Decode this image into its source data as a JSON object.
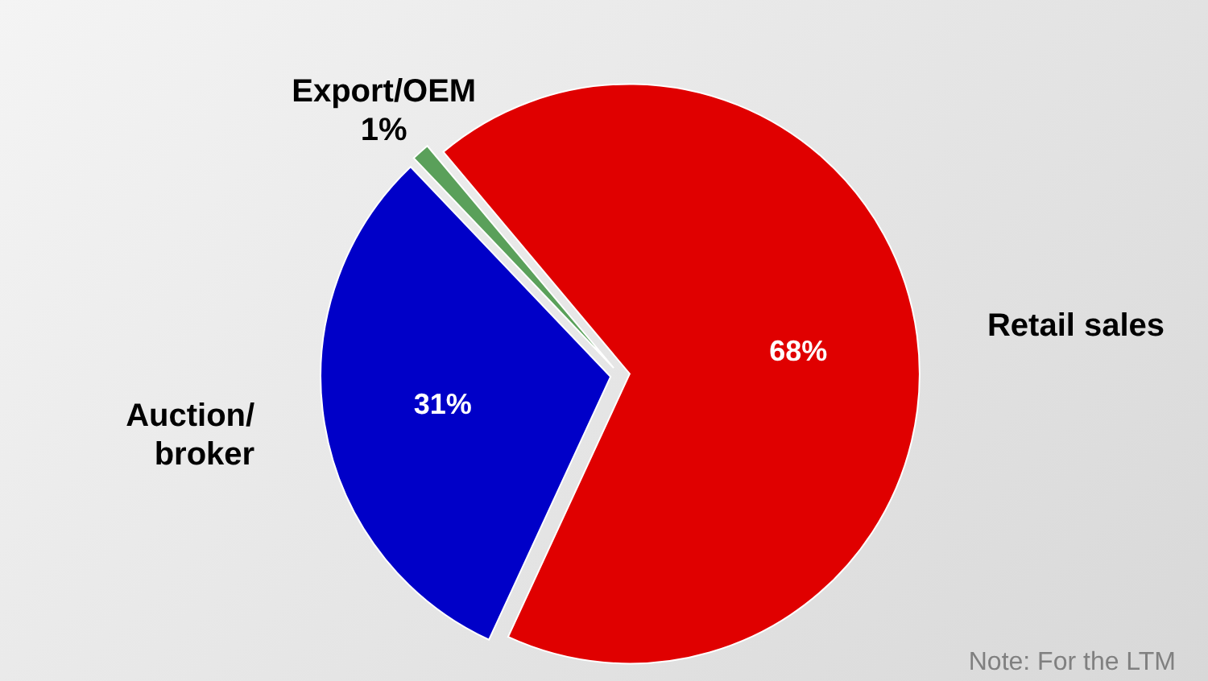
{
  "chart_data": {
    "type": "pie",
    "categories": [
      "Retail sales",
      "Auction/\nbroker",
      "Export/OEM"
    ],
    "values": [
      68,
      31,
      1
    ],
    "colors": [
      "#e00000",
      "#0000c8",
      "#5aa05a"
    ],
    "value_labels": [
      "68%",
      "31%",
      "1%"
    ],
    "annotations": [
      "Note: For the LTM"
    ]
  }
}
